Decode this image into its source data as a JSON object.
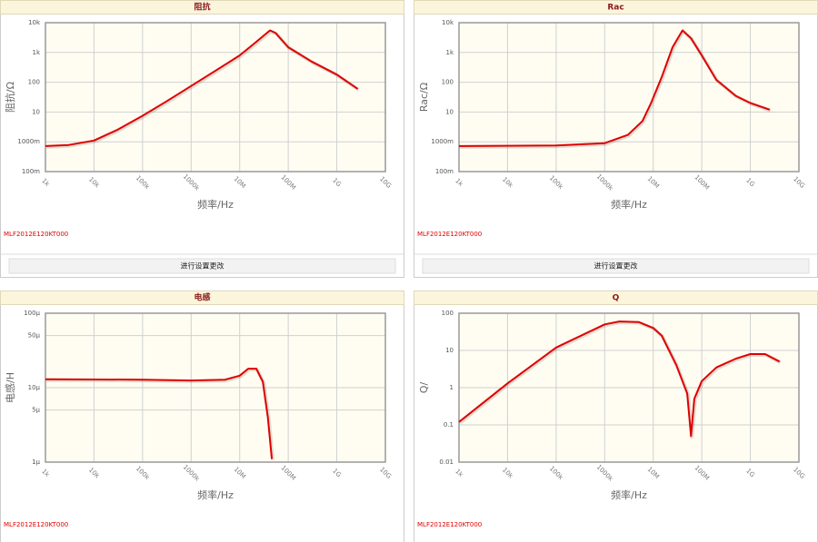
{
  "chart_data": [
    {
      "type": "line",
      "title": "阻抗",
      "xlabel": "频率/Hz",
      "ylabel": "阻抗/Ω",
      "annotation": "MLF2012E120KT000",
      "button": "进行设置更改",
      "xscale": "log",
      "yscale": "log",
      "grid": true,
      "color": "#e00000",
      "xlim": [
        1000,
        10000000000
      ],
      "ylim": [
        0.1,
        10000
      ],
      "xticks": [
        {
          "value": 1000,
          "label": "1k"
        },
        {
          "value": 10000,
          "label": "10k"
        },
        {
          "value": 100000,
          "label": "100k"
        },
        {
          "value": 1000000,
          "label": "1000k"
        },
        {
          "value": 10000000,
          "label": "10M"
        },
        {
          "value": 100000000,
          "label": "100M"
        },
        {
          "value": 1000000000,
          "label": "1G"
        },
        {
          "value": 10000000000,
          "label": "10G"
        }
      ],
      "yticks": [
        {
          "value": 0.1,
          "label": "100m"
        },
        {
          "value": 1,
          "label": "1000m"
        },
        10,
        100,
        {
          "value": 1000,
          "label": "1k"
        },
        {
          "value": 10000,
          "label": "10k"
        }
      ],
      "x": [
        1000,
        3000,
        10000,
        30000,
        100000,
        300000,
        1000000,
        3000000,
        10000000,
        20000000,
        42000000,
        55000000,
        100000000,
        300000000,
        1000000000,
        2700000000
      ],
      "values": [
        0.72,
        0.78,
        1.1,
        2.5,
        7.5,
        22,
        75,
        230,
        800,
        2000,
        5500,
        4500,
        1500,
        500,
        180,
        60
      ]
    },
    {
      "type": "line",
      "title": "Rac",
      "xlabel": "频率/Hz",
      "ylabel": "Rac/Ω",
      "annotation": "MLF2012E120KT000",
      "button": "进行设置更改",
      "xscale": "log",
      "yscale": "log",
      "grid": true,
      "color": "#e00000",
      "xlim": [
        1000,
        10000000000
      ],
      "ylim": [
        0.1,
        10000
      ],
      "xticks": [
        {
          "value": 1000,
          "label": "1k"
        },
        {
          "value": 10000,
          "label": "10k"
        },
        {
          "value": 100000,
          "label": "100k"
        },
        {
          "value": 1000000,
          "label": "1000k"
        },
        {
          "value": 10000000,
          "label": "10M"
        },
        {
          "value": 100000000,
          "label": "100M"
        },
        {
          "value": 1000000000,
          "label": "1G"
        },
        {
          "value": 10000000000,
          "label": "10G"
        }
      ],
      "yticks": [
        {
          "value": 0.1,
          "label": "100m"
        },
        {
          "value": 1,
          "label": "1000m"
        },
        10,
        100,
        {
          "value": 1000,
          "label": "1k"
        },
        {
          "value": 10000,
          "label": "10k"
        }
      ],
      "x": [
        1000,
        100000,
        1000000,
        3000000,
        6000000,
        9000000,
        15000000,
        25000000,
        40000000,
        60000000,
        100000000,
        200000000,
        500000000,
        1000000000,
        2500000000
      ],
      "values": [
        0.72,
        0.75,
        0.9,
        1.7,
        5,
        20,
        150,
        1500,
        5500,
        3000,
        800,
        120,
        35,
        20,
        12
      ]
    },
    {
      "type": "line",
      "title": "电感",
      "xlabel": "频率/Hz",
      "ylabel": "电感/H",
      "annotation": "MLF2012E120KT000",
      "xscale": "log",
      "yscale": "log",
      "grid": true,
      "color": "#e00000",
      "xlim": [
        1000,
        10000000000
      ],
      "ylim": [
        1e-06,
        0.0001
      ],
      "xticks": [
        {
          "value": 1000,
          "label": "1k"
        },
        {
          "value": 10000,
          "label": "10k"
        },
        {
          "value": 100000,
          "label": "100k"
        },
        {
          "value": 1000000,
          "label": "1000k"
        },
        {
          "value": 10000000,
          "label": "10M"
        },
        {
          "value": 100000000,
          "label": "100M"
        },
        {
          "value": 1000000000,
          "label": "1G"
        },
        {
          "value": 10000000000,
          "label": "10G"
        }
      ],
      "yticks": [
        {
          "value": 1e-06,
          "label": "1μ"
        },
        {
          "value": 5e-06,
          "label": "5μ"
        },
        {
          "value": 1e-05,
          "label": "10μ"
        },
        {
          "value": 5e-05,
          "label": "50μ"
        },
        {
          "value": 0.0001,
          "label": "100μ"
        }
      ],
      "x": [
        1000,
        100000,
        1000000,
        5000000,
        10000000,
        15000000,
        22000000,
        30000000,
        38000000,
        46000000
      ],
      "values": [
        1.3e-05,
        1.28e-05,
        1.25e-05,
        1.28e-05,
        1.45e-05,
        1.8e-05,
        1.8e-05,
        1.2e-05,
        4e-06,
        1.1e-06
      ]
    },
    {
      "type": "line",
      "title": "Q",
      "xlabel": "频率/Hz",
      "ylabel": "Q/",
      "annotation": "MLF2012E120KT000",
      "xscale": "log",
      "yscale": "log",
      "grid": true,
      "color": "#e00000",
      "xlim": [
        1000,
        10000000000
      ],
      "ylim": [
        0.01,
        100
      ],
      "xticks": [
        {
          "value": 1000,
          "label": "1k"
        },
        {
          "value": 10000,
          "label": "10k"
        },
        {
          "value": 100000,
          "label": "100k"
        },
        {
          "value": 1000000,
          "label": "1000k"
        },
        {
          "value": 10000000,
          "label": "10M"
        },
        {
          "value": 100000000,
          "label": "100M"
        },
        {
          "value": 1000000000,
          "label": "1G"
        },
        {
          "value": 10000000000,
          "label": "10G"
        }
      ],
      "yticks": [
        0.01,
        0.1,
        1,
        10,
        100
      ],
      "x": [
        1000,
        10000,
        100000,
        1000000,
        2000000,
        5000000,
        10000000,
        15000000,
        30000000,
        50000000,
        60000000,
        70000000,
        100000000,
        200000000,
        500000000,
        1000000000,
        2000000000,
        4000000000
      ],
      "values": [
        0.12,
        1.3,
        12,
        50,
        60,
        58,
        40,
        25,
        4,
        0.7,
        0.05,
        0.5,
        1.5,
        3.5,
        6,
        8,
        8,
        5
      ]
    }
  ]
}
